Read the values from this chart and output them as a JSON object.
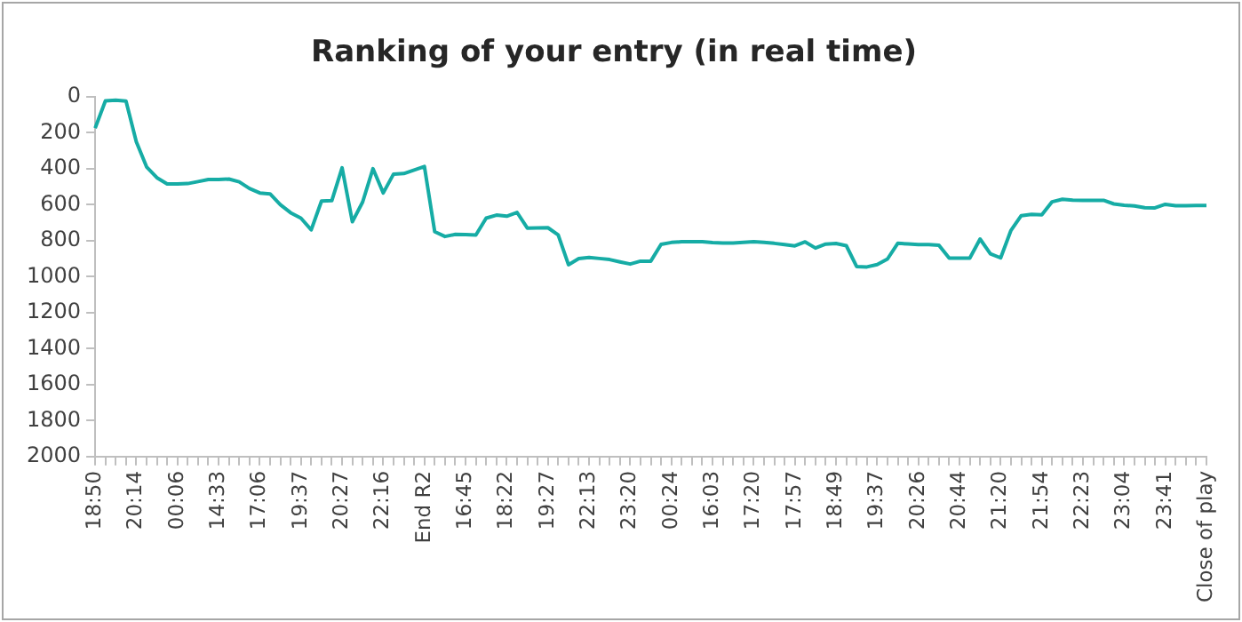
{
  "chart_data": {
    "type": "line",
    "title": "Ranking of your entry (in real time)",
    "categories": [
      "18:50",
      null,
      null,
      null,
      "20:14",
      null,
      null,
      null,
      "00:06",
      null,
      null,
      null,
      "14:33",
      null,
      null,
      null,
      "17:06",
      null,
      null,
      null,
      "19:37",
      null,
      null,
      null,
      "20:27",
      null,
      null,
      null,
      "22:16",
      null,
      null,
      null,
      "End R2",
      null,
      null,
      null,
      "16:45",
      null,
      null,
      null,
      "18:22",
      null,
      null,
      null,
      "19:27",
      null,
      null,
      null,
      "22:13",
      null,
      null,
      null,
      "23:20",
      null,
      null,
      null,
      "00:24",
      null,
      null,
      null,
      "16:03",
      null,
      null,
      null,
      "17:20",
      null,
      null,
      null,
      "17:57",
      null,
      null,
      null,
      "18:49",
      null,
      null,
      null,
      "19:37",
      null,
      null,
      null,
      "20:26",
      null,
      null,
      null,
      "20:44",
      null,
      null,
      null,
      "21:20",
      null,
      null,
      null,
      "21:54",
      null,
      null,
      null,
      "22:23",
      null,
      null,
      null,
      "23:04",
      null,
      null,
      null,
      "23:41",
      null,
      null,
      null,
      "Close of play"
    ],
    "series": [
      {
        "color": "#16aca5",
        "values": [
          175,
          23,
          20,
          24,
          250,
          390,
          450,
          485,
          485,
          483,
          472,
          460,
          460,
          458,
          473,
          510,
          535,
          540,
          600,
          645,
          675,
          740,
          580,
          578,
          395,
          695,
          585,
          400,
          535,
          430,
          427,
          408,
          388,
          750,
          777,
          765,
          766,
          769,
          675,
          658,
          664,
          643,
          730,
          729,
          728,
          768,
          934,
          900,
          893,
          899,
          905,
          918,
          930,
          914,
          914,
          821,
          810,
          806,
          806,
          806,
          811,
          813,
          813,
          810,
          806,
          810,
          815,
          822,
          829,
          807,
          841,
          819,
          816,
          828,
          944,
          946,
          933,
          902,
          815,
          818,
          822,
          822,
          825,
          897,
          897,
          897,
          791,
          873,
          896,
          743,
          661,
          654,
          656,
          584,
          570,
          575,
          576,
          576,
          576,
          596,
          603,
          607,
          617,
          618,
          598,
          606,
          606,
          605,
          604
        ]
      }
    ],
    "ylim": [
      2000,
      0
    ],
    "yticks": [
      0,
      200,
      400,
      600,
      800,
      1000,
      1200,
      1400,
      1600,
      1800,
      2000
    ],
    "grid": false,
    "legend": false,
    "marker": "none",
    "line_style": "solid"
  }
}
